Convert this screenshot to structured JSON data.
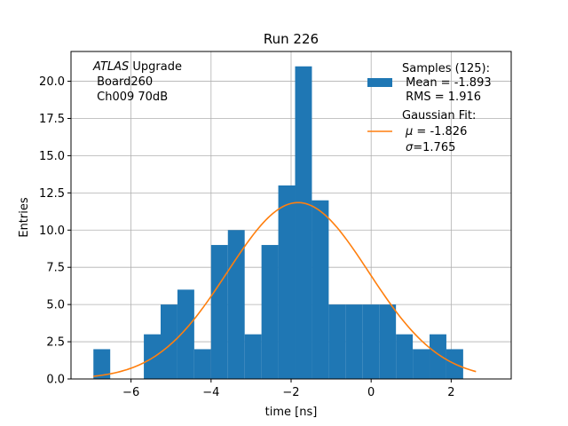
{
  "chart_data": {
    "type": "bar",
    "subtype": "histogram",
    "title": "Run 226",
    "xlabel": "time [ns]",
    "ylabel": "Entries",
    "xlim": [
      -7.5,
      3.5
    ],
    "ylim": [
      0,
      22
    ],
    "grid": true,
    "x_ticks": [
      -6,
      -4,
      -2,
      0,
      2
    ],
    "x_tick_labels": [
      "−6",
      "−4",
      "−2",
      "0",
      "2"
    ],
    "y_ticks": [
      0,
      2.5,
      5,
      7.5,
      10,
      12.5,
      15,
      17.5,
      20
    ],
    "y_tick_labels": [
      "0.0",
      "2.5",
      "5.0",
      "7.5",
      "10.0",
      "12.5",
      "15.0",
      "17.5",
      "20.0"
    ],
    "bin_edges": [
      -6.94,
      -6.52,
      -6.1,
      -5.68,
      -5.26,
      -4.84,
      -4.42,
      -4.0,
      -3.58,
      -3.16,
      -2.74,
      -2.32,
      -1.9,
      -1.48,
      -1.06,
      -0.64,
      -0.22,
      0.2,
      0.62,
      1.04,
      1.46,
      1.88,
      2.3,
      2.72
    ],
    "counts": [
      2,
      0,
      0,
      3,
      5,
      6,
      2,
      9,
      10,
      3,
      9,
      13,
      21,
      12,
      5,
      5,
      5,
      5,
      3,
      2,
      3,
      2,
      0
    ],
    "bar_color": "#1f77b4",
    "fit": {
      "name": "Gaussian Fit",
      "mu": -1.826,
      "sigma": 1.765,
      "amplitude": 11.85,
      "x_range": [
        -6.94,
        2.62
      ],
      "color": "#ff7f0e"
    },
    "annotation": {
      "italic": "ATLAS",
      "rest": " Upgrade",
      "line2": " Board260",
      "line3": " Ch009 70dB"
    },
    "legend": {
      "position": "top-right",
      "samples_title": "Samples (125):",
      "samples_mean": " Mean = -1.893",
      "samples_rms": " RMS = 1.916",
      "fit_title": "Gaussian Fit:",
      "fit_mu_symbol": "μ",
      "fit_mu_value": " = -1.826",
      "fit_sigma_symbol": "σ",
      "fit_sigma_value": "=1.765"
    }
  }
}
